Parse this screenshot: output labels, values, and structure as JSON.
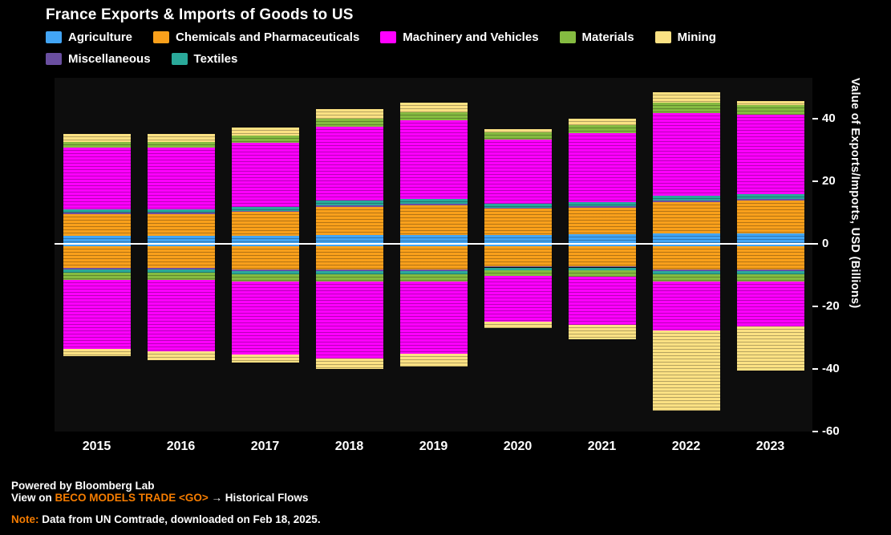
{
  "title": "France Exports & Imports of Goods to US",
  "legend": [
    {
      "label": "Agriculture",
      "color": "#42A5F5"
    },
    {
      "label": "Chemicals and Pharmaceuticals",
      "color": "#F9A01B"
    },
    {
      "label": "Machinery and Vehicles",
      "color": "#FF00FF"
    },
    {
      "label": "Materials",
      "color": "#85BB41"
    },
    {
      "label": "Mining",
      "color": "#FBE183"
    },
    {
      "label": "Miscellaneous",
      "color": "#6A4FA0"
    },
    {
      "label": "Textiles",
      "color": "#2AA99A"
    }
  ],
  "chart_data": {
    "type": "bar",
    "stacked": true,
    "title": "France Exports & Imports of Goods to US",
    "categories": [
      "2015",
      "2016",
      "2017",
      "2018",
      "2019",
      "2020",
      "2021",
      "2022",
      "2023"
    ],
    "ylabel": "Value of Exports/Imports, USD (Billions)",
    "yticks": [
      40,
      20,
      0,
      -20,
      -40,
      -60
    ],
    "ylim": [
      -60,
      53
    ],
    "units": "USD Billions; exports positive, imports negative",
    "export_order": [
      "Agriculture",
      "Chemicals and Pharmaceuticals",
      "Miscellaneous",
      "Textiles",
      "Machinery and Vehicles",
      "Materials",
      "Mining"
    ],
    "import_order": [
      "Agriculture",
      "Chemicals and Pharmaceuticals",
      "Miscellaneous",
      "Textiles",
      "Materials",
      "Machinery and Vehicles",
      "Mining"
    ],
    "series": [
      {
        "name": "Agriculture",
        "color": "#42A5F5",
        "exports": [
          2.5,
          2.5,
          2.6,
          2.8,
          2.8,
          2.7,
          3.0,
          3.2,
          3.2
        ],
        "imports": [
          0.8,
          0.8,
          0.8,
          0.8,
          0.8,
          0.7,
          0.7,
          0.8,
          0.8
        ]
      },
      {
        "name": "Chemicals and Pharmaceuticals",
        "color": "#F9A01B",
        "exports": [
          7.0,
          7.0,
          7.5,
          9.0,
          9.5,
          8.5,
          8.5,
          10.0,
          10.5
        ],
        "imports": [
          7.0,
          7.0,
          7.5,
          7.5,
          7.5,
          6.5,
          6.5,
          7.5,
          7.5
        ]
      },
      {
        "name": "Machinery and Vehicles",
        "color": "#FF00FF",
        "exports": [
          19.5,
          19.5,
          20.5,
          23.5,
          25.0,
          20.5,
          22.0,
          26.5,
          25.5
        ],
        "imports": [
          22.0,
          23.0,
          23.5,
          24.5,
          23.0,
          14.7,
          15.4,
          15.8,
          14.5
        ]
      },
      {
        "name": "Materials",
        "color": "#85BB41",
        "exports": [
          2.0,
          2.0,
          2.2,
          2.7,
          2.7,
          2.2,
          2.6,
          3.2,
          3.0
        ],
        "imports": [
          2.2,
          2.2,
          2.2,
          2.3,
          2.3,
          1.8,
          2.0,
          2.1,
          2.1
        ]
      },
      {
        "name": "Mining",
        "color": "#FBE183",
        "exports": [
          2.4,
          2.4,
          2.5,
          3.0,
          3.0,
          1.0,
          2.0,
          3.5,
          1.2
        ],
        "imports": [
          2.5,
          2.7,
          2.5,
          3.3,
          4.0,
          2.0,
          4.5,
          25.6,
          14.0
        ]
      },
      {
        "name": "Miscellaneous",
        "color": "#6A4FA0",
        "exports": [
          0.4,
          0.4,
          0.4,
          0.5,
          0.5,
          0.4,
          0.5,
          0.5,
          0.5
        ],
        "imports": [
          0.5,
          0.5,
          0.5,
          0.5,
          0.5,
          0.4,
          0.4,
          0.5,
          0.5
        ]
      },
      {
        "name": "Textiles",
        "color": "#2AA99A",
        "exports": [
          1.2,
          1.2,
          1.3,
          1.5,
          1.5,
          1.2,
          1.4,
          1.6,
          1.6
        ],
        "imports": [
          1.0,
          1.0,
          1.0,
          1.1,
          1.1,
          0.9,
          1.0,
          1.1,
          1.1
        ]
      }
    ]
  },
  "footer": {
    "powered_by": "Powered by Bloomberg Lab",
    "view_prefix": "View on ",
    "view_link": "BECO MODELS TRADE <GO>",
    "view_suffix": " → Historical Flows",
    "note_label": "Note:",
    "note_text": " Data from UN Comtrade, downloaded on Feb 18, 2025."
  }
}
